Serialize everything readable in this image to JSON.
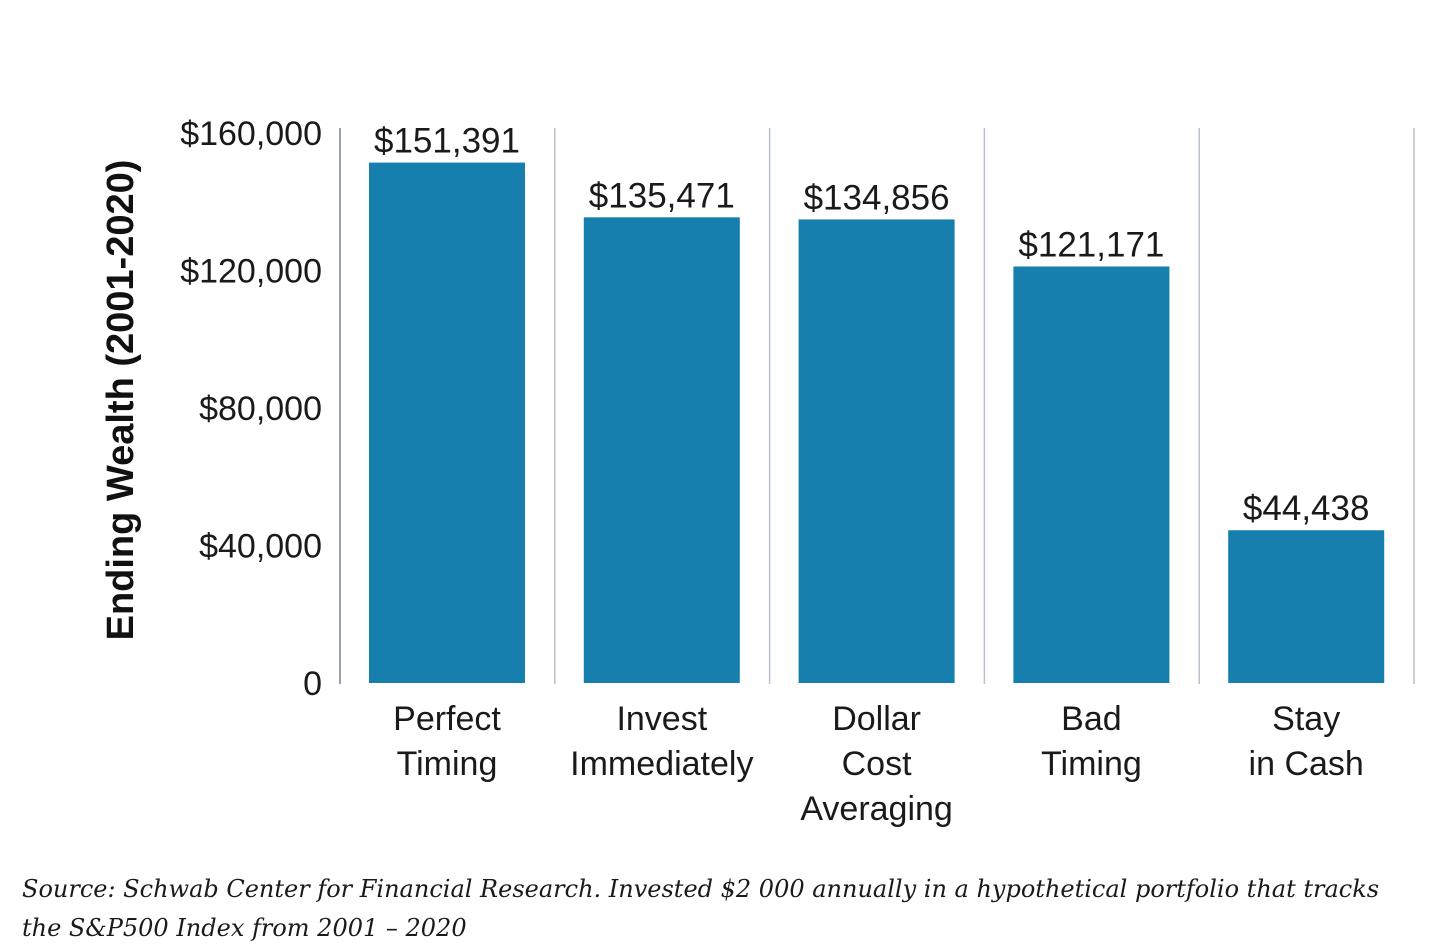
{
  "chart_data": {
    "type": "bar",
    "title": "",
    "xlabel": "",
    "ylabel": "Ending Wealth (2001-2020)",
    "ylim": [
      0,
      160000
    ],
    "yticks": [
      0,
      40000,
      80000,
      120000,
      160000
    ],
    "ytick_labels": [
      "0",
      "$40,000",
      "$80,000",
      "$120,000",
      "$160,000"
    ],
    "grid": "vertical separators between categories",
    "legend": "none",
    "categories": [
      [
        "Perfect",
        "Timing"
      ],
      [
        "Invest",
        "Immediately"
      ],
      [
        "Dollar",
        "Cost",
        "Averaging"
      ],
      [
        "Bad",
        "Timing"
      ],
      [
        "Stay",
        "in Cash"
      ]
    ],
    "values": [
      151391,
      135471,
      134856,
      121171,
      44438
    ],
    "data_labels": [
      "$151,391",
      "$135,471",
      "$134,856",
      "$121,171",
      "$44,438"
    ],
    "bar_color": "#167fae",
    "separator_color": "#b9c2cc",
    "axis_color": "#9aa3ad"
  },
  "caption": "Source: Schwab Center for Financial Research. Invested $2 000 annually in a hypothetical portfolio that tracks the S&P500 Index from 2001 – 2020"
}
